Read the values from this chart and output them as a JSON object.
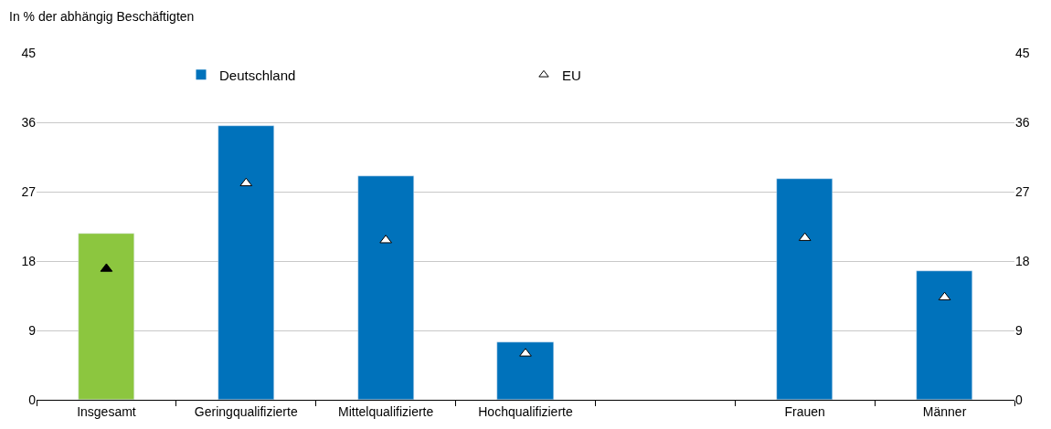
{
  "chart_data": {
    "type": "bar",
    "ylabel": "In % der abhängig Beschäftigten",
    "categories": [
      "Insgesamt",
      "Geringqualifizierte",
      "Mittelqualifizierte",
      "Hochqualifizierte",
      null,
      "Frauen",
      "Männer"
    ],
    "series": [
      {
        "name": "Deutschland",
        "color": "#0072bb",
        "colors": [
          "#8cc63f",
          "#0072bb",
          "#0072bb",
          "#0072bb",
          "#0072bb",
          "#0072bb",
          "#0072bb"
        ],
        "values": [
          21.6,
          35.5,
          29.0,
          7.5,
          null,
          28.6,
          16.7
        ]
      },
      {
        "name": "EU",
        "type": "scatter",
        "marker": "triangle",
        "color": "#ffffff",
        "colors": [
          "#000000",
          "#ffffff",
          "#ffffff",
          "#ffffff",
          "#ffffff",
          "#ffffff",
          "#ffffff"
        ],
        "values": [
          17.0,
          28.1,
          20.7,
          6.0,
          null,
          21.0,
          13.3
        ]
      }
    ],
    "ylim": [
      0,
      45
    ],
    "yticks": [
      0,
      9,
      18,
      27,
      36,
      45
    ],
    "y2lim": [
      0,
      45
    ],
    "y2ticks": [
      0,
      9,
      18,
      27,
      36,
      45
    ],
    "grid": "y",
    "legend": "top"
  }
}
